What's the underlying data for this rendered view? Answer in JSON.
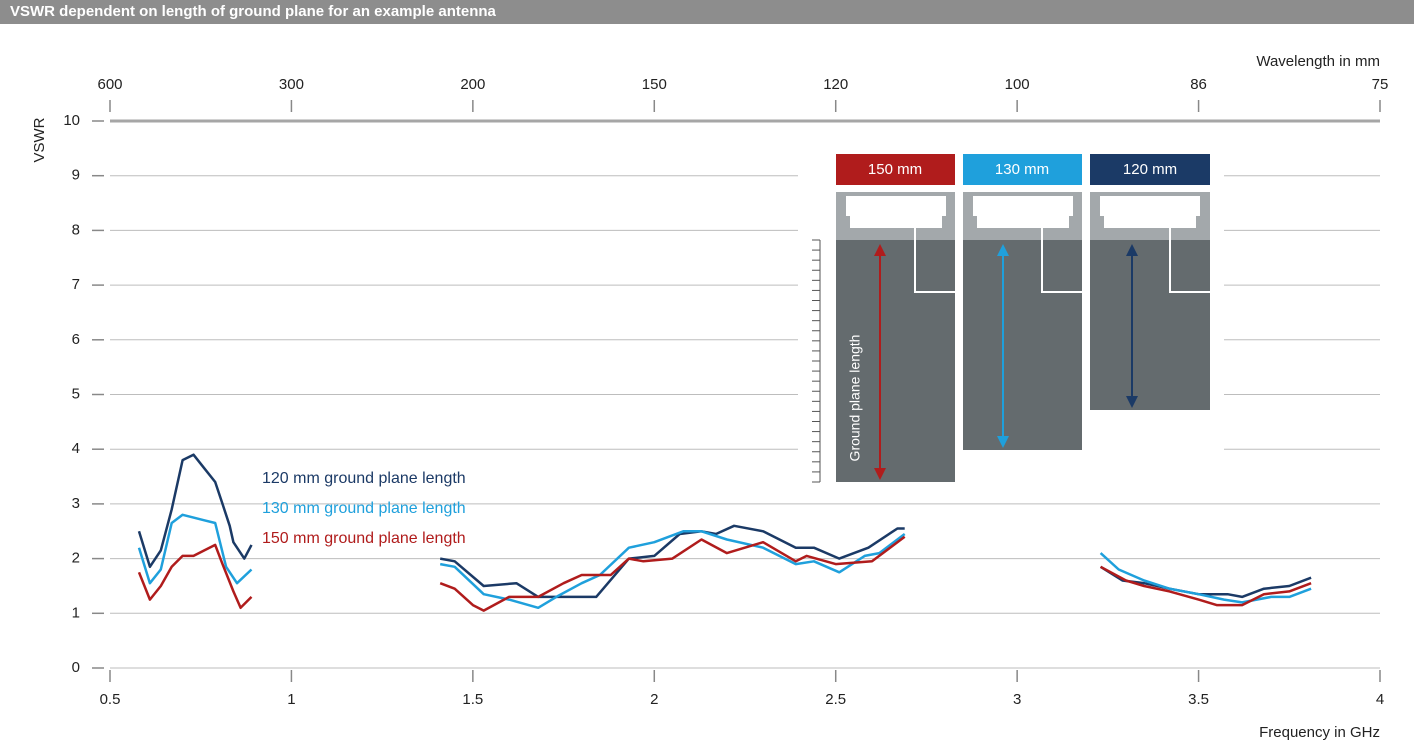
{
  "chart_data": {
    "type": "line",
    "title": "VSWR dependent on length of ground plane for an example antenna",
    "y_label": "VSWR",
    "x_label": "Frequency in GHz",
    "x2_label": "Wavelength in mm",
    "xlim": [
      0.5,
      4
    ],
    "xticks": [
      0.5,
      1,
      1.5,
      2,
      2.5,
      3,
      3.5,
      4
    ],
    "x2ticks": [
      {
        "value": 0.5,
        "label": "600"
      },
      {
        "value": 1,
        "label": "300"
      },
      {
        "value": 1.5,
        "label": "200"
      },
      {
        "value": 2,
        "label": "150"
      },
      {
        "value": 2.5,
        "label": "120"
      },
      {
        "value": 3,
        "label": "100"
      },
      {
        "value": 3.5,
        "label": "86"
      },
      {
        "value": 4,
        "label": "75"
      }
    ],
    "ylim": [
      0,
      10
    ],
    "yticks": [
      0,
      1,
      2,
      3,
      4,
      5,
      6,
      7,
      8,
      9,
      10
    ],
    "grid": true,
    "series": [
      {
        "name": "120 mm ground plane length",
        "color": "#1b3a66",
        "x": [
          0.58,
          0.61,
          0.64,
          0.67,
          0.7,
          0.73,
          0.76,
          0.79,
          0.81,
          0.83,
          0.84,
          0.87,
          0.89,
          null,
          1.41,
          1.45,
          1.53,
          1.62,
          1.68,
          1.84,
          1.93,
          2.0,
          2.07,
          2.13,
          2.17,
          2.22,
          2.3,
          2.39,
          2.44,
          2.51,
          2.59,
          2.67,
          2.69,
          null,
          3.23,
          3.29,
          3.35,
          3.42,
          3.5,
          3.58,
          3.62,
          3.68,
          3.75,
          3.81
        ],
        "values": [
          2.5,
          1.85,
          2.15,
          2.9,
          3.8,
          3.9,
          3.65,
          3.4,
          3.0,
          2.6,
          2.3,
          2.0,
          2.25,
          null,
          2.0,
          1.95,
          1.5,
          1.55,
          1.3,
          1.3,
          2.0,
          2.05,
          2.45,
          2.5,
          2.45,
          2.6,
          2.5,
          2.2,
          2.2,
          2.0,
          2.2,
          2.55,
          2.55,
          null,
          1.85,
          1.6,
          1.55,
          1.45,
          1.35,
          1.35,
          1.3,
          1.45,
          1.5,
          1.65
        ]
      },
      {
        "name": "130 mm ground plane length",
        "color": "#1fa0dc",
        "x": [
          0.58,
          0.61,
          0.64,
          0.67,
          0.7,
          0.73,
          0.76,
          0.79,
          0.82,
          0.85,
          0.89,
          null,
          1.41,
          1.45,
          1.53,
          1.6,
          1.68,
          1.73,
          1.8,
          1.85,
          1.93,
          2.0,
          2.08,
          2.13,
          2.2,
          2.3,
          2.39,
          2.44,
          2.51,
          2.58,
          2.62,
          2.69,
          null,
          3.23,
          3.28,
          3.35,
          3.42,
          3.5,
          3.57,
          3.62,
          3.7,
          3.75,
          3.81
        ],
        "values": [
          2.2,
          1.55,
          1.8,
          2.65,
          2.8,
          2.75,
          2.7,
          2.65,
          1.85,
          1.55,
          1.8,
          null,
          1.9,
          1.85,
          1.35,
          1.25,
          1.1,
          1.3,
          1.55,
          1.7,
          2.2,
          2.3,
          2.5,
          2.5,
          2.35,
          2.2,
          1.9,
          1.95,
          1.75,
          2.05,
          2.1,
          2.45,
          null,
          2.1,
          1.8,
          1.6,
          1.45,
          1.35,
          1.25,
          1.2,
          1.3,
          1.3,
          1.45
        ]
      },
      {
        "name": "150 mm ground plane length",
        "color": "#b01c1c",
        "x": [
          0.58,
          0.61,
          0.64,
          0.67,
          0.7,
          0.73,
          0.76,
          0.79,
          0.81,
          0.84,
          0.86,
          0.89,
          null,
          1.41,
          1.45,
          1.5,
          1.53,
          1.6,
          1.68,
          1.75,
          1.8,
          1.88,
          1.93,
          1.97,
          2.05,
          2.13,
          2.2,
          2.3,
          2.39,
          2.42,
          2.5,
          2.6,
          2.69,
          null,
          3.23,
          3.3,
          3.35,
          3.42,
          3.5,
          3.55,
          3.62,
          3.68,
          3.75,
          3.81
        ],
        "values": [
          1.75,
          1.25,
          1.5,
          1.85,
          2.05,
          2.05,
          2.15,
          2.25,
          1.9,
          1.4,
          1.1,
          1.3,
          null,
          1.55,
          1.45,
          1.15,
          1.05,
          1.3,
          1.3,
          1.55,
          1.7,
          1.7,
          2.0,
          1.95,
          2.0,
          2.35,
          2.1,
          2.3,
          1.95,
          2.05,
          1.9,
          1.95,
          2.4,
          null,
          1.85,
          1.6,
          1.5,
          1.4,
          1.25,
          1.15,
          1.15,
          1.35,
          1.4,
          1.55
        ]
      }
    ],
    "inset": {
      "labels": [
        "150 mm",
        "130 mm",
        "120 mm"
      ],
      "axis_label": "Ground plane length"
    }
  }
}
